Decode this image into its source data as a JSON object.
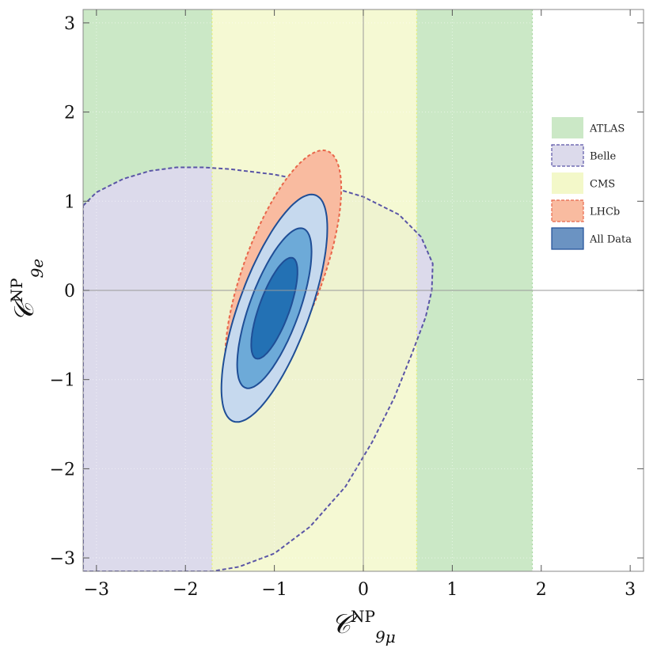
{
  "chart_data": {
    "type": "contour",
    "x_axis": {
      "label_main": "𝒞",
      "label_sup": "NP",
      "label_sub": "9μ",
      "range": [
        -3.15,
        3.15
      ],
      "ticks": [
        -3,
        -2,
        -1,
        0,
        1,
        2,
        3
      ],
      "tick_labels": [
        "−3",
        "−2",
        "−1",
        "0",
        "1",
        "2",
        "3"
      ]
    },
    "y_axis": {
      "label_main": "𝒞",
      "label_sup": "NP",
      "label_sub": "9e",
      "range": [
        -3.15,
        3.15
      ],
      "ticks": [
        -3,
        -2,
        -1,
        0,
        1,
        2,
        3
      ],
      "tick_labels": [
        "−3",
        "−2",
        "−1",
        "0",
        "1",
        "2",
        "3"
      ]
    },
    "grid": true,
    "legend_position": "right",
    "series": [
      {
        "name": "ATLAS",
        "kind": "vertical-band",
        "x_ranges": [
          [
            -3.15,
            -1.7
          ],
          [
            0.6,
            1.9
          ]
        ],
        "color": "#cbe8c6",
        "edge": "#a8d8a0"
      },
      {
        "name": "Belle",
        "kind": "region",
        "color": "#dcdaeb",
        "edge": "#5a55a6",
        "boundary": [
          [
            -3.15,
            0.95
          ],
          [
            -3.0,
            1.1
          ],
          [
            -2.7,
            1.25
          ],
          [
            -2.4,
            1.34
          ],
          [
            -2.1,
            1.38
          ],
          [
            -1.8,
            1.38
          ],
          [
            -1.5,
            1.36
          ],
          [
            -1.0,
            1.3
          ],
          [
            -0.5,
            1.2
          ],
          [
            0.0,
            1.05
          ],
          [
            0.4,
            0.85
          ],
          [
            0.65,
            0.6
          ],
          [
            0.78,
            0.3
          ],
          [
            0.77,
            0.0
          ],
          [
            0.7,
            -0.3
          ],
          [
            0.55,
            -0.7
          ],
          [
            0.35,
            -1.2
          ],
          [
            0.1,
            -1.7
          ],
          [
            -0.2,
            -2.2
          ],
          [
            -0.6,
            -2.65
          ],
          [
            -1.0,
            -2.95
          ],
          [
            -1.4,
            -3.1
          ],
          [
            -1.7,
            -3.15
          ],
          [
            -3.15,
            -3.15
          ]
        ]
      },
      {
        "name": "CMS",
        "kind": "vertical-band",
        "x_ranges": [
          [
            -1.7,
            0.6
          ]
        ],
        "color": "#f3f8c9",
        "edge": "#e4ef7a"
      },
      {
        "name": "LHCb",
        "kind": "region",
        "color": "#f9bba0",
        "edge": "#e8664a",
        "center": [
          -0.9,
          0.2
        ],
        "semi_axes": [
          0.45,
          1.45
        ],
        "rotation_deg": -20
      },
      {
        "name": "All Data",
        "kind": "contours",
        "color": "#6b93c2",
        "edge": "#1f4e96",
        "center": [
          -1.0,
          -0.2
        ],
        "rotation_deg": -20,
        "levels": [
          {
            "semi_axes": [
              0.4,
              1.35
            ],
            "fill": "#c6d9ee"
          },
          {
            "semi_axes": [
              0.28,
              0.95
            ],
            "fill": "#6daad8"
          },
          {
            "semi_axes": [
              0.17,
              0.6
            ],
            "fill": "#2371b4"
          }
        ]
      }
    ]
  }
}
